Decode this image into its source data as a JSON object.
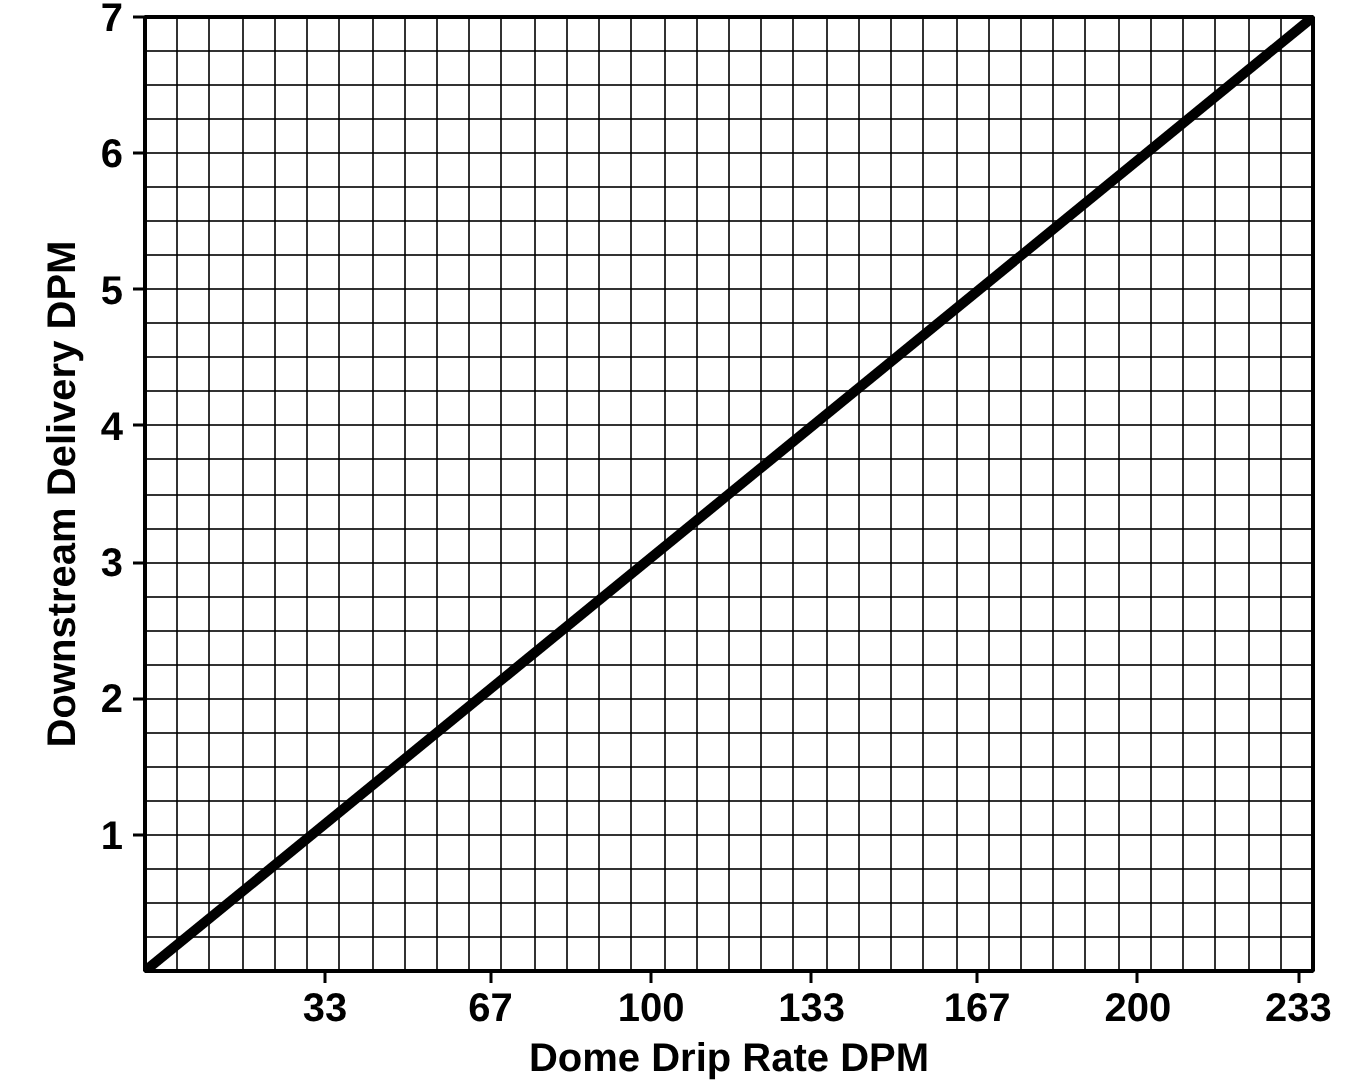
{
  "chart_data": {
    "type": "line",
    "xlabel": "Dome Drip Rate DPM",
    "ylabel": "Downstream Delivery DPM",
    "x": [
      -4,
      236
    ],
    "series": [
      {
        "color": "#000000",
        "values": [
          0,
          7
        ]
      }
    ],
    "xlim": [
      -4,
      236
    ],
    "ylim": [
      0,
      7
    ],
    "xticks": [
      33,
      67,
      100,
      133,
      167,
      200,
      233
    ],
    "yticks": [
      1,
      2,
      3,
      4,
      5,
      6,
      7
    ],
    "grid": true,
    "marker": "none",
    "line_style": "solid"
  }
}
